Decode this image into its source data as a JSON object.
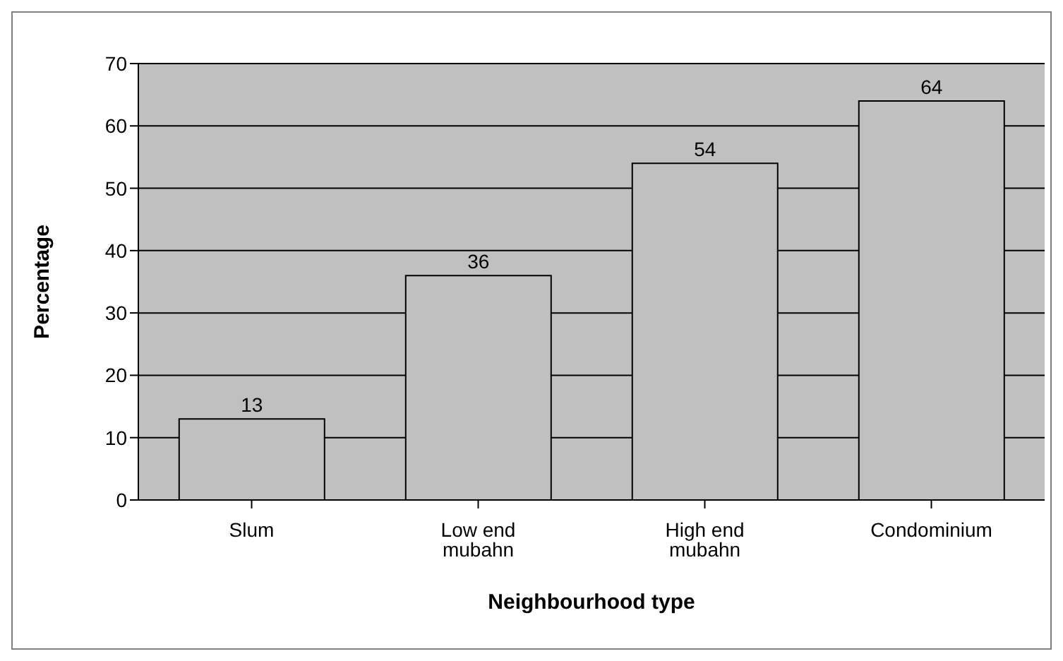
{
  "chart_data": {
    "type": "bar",
    "xlabel": "Neighbourhood type",
    "ylabel": "Percentage",
    "categories": [
      "Slum",
      "Low end mubahn",
      "High end mubahn",
      "Condominium"
    ],
    "values": [
      13,
      36,
      54,
      64
    ],
    "color": "#c0c0c0",
    "ylim": [
      0,
      70
    ],
    "yticks": [
      0,
      10,
      20,
      30,
      40,
      50,
      60,
      70
    ],
    "grid": "y",
    "data_labels": true,
    "legend": false
  }
}
